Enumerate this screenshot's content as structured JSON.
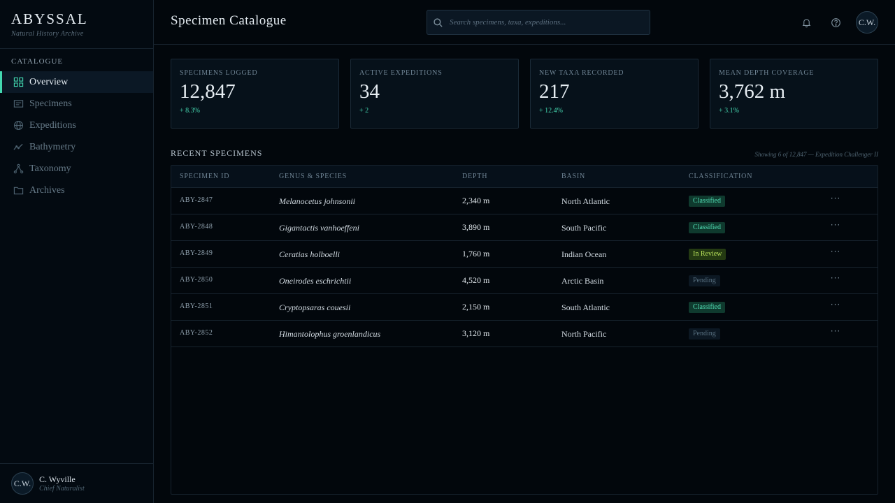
{
  "brand": {
    "title": "ABYSSAL",
    "subtitle": "Natural History Archive"
  },
  "sidebar": {
    "section": "CATALOGUE",
    "items": [
      {
        "label": "Overview",
        "icon": "grid-icon",
        "active": true
      },
      {
        "label": "Specimens",
        "icon": "card-icon"
      },
      {
        "label": "Expeditions",
        "icon": "globe-icon"
      },
      {
        "label": "Bathymetry",
        "icon": "line-chart-icon"
      },
      {
        "label": "Taxonomy",
        "icon": "tree-icon"
      },
      {
        "label": "Archives",
        "icon": "folder-icon"
      }
    ]
  },
  "user": {
    "initials": "C.W.",
    "name": "C. Wyville",
    "role": "Chief Naturalist"
  },
  "header": {
    "title": "Specimen Catalogue",
    "search_placeholder": "Search specimens, taxa, expeditions...",
    "avatar_initials": "C.W."
  },
  "stats": [
    {
      "label": "SPECIMENS LOGGED",
      "value": "12,847",
      "delta": "+ 8.3%"
    },
    {
      "label": "ACTIVE EXPEDITIONS",
      "value": "34",
      "delta": "+ 2"
    },
    {
      "label": "NEW TAXA RECORDED",
      "value": "217",
      "delta": "+ 12.4%"
    },
    {
      "label": "MEAN DEPTH COVERAGE",
      "value": "3,762 m",
      "delta": "+ 3.1%"
    }
  ],
  "recent": {
    "title": "RECENT SPECIMENS",
    "note": "Showing 6 of 12,847 — Expedition Challenger II",
    "columns": [
      "SPECIMEN ID",
      "GENUS & SPECIES",
      "DEPTH",
      "BASIN",
      "CLASSIFICATION"
    ],
    "rows": [
      {
        "id": "ABY-2847",
        "species": "Melanocetus johnsonii",
        "depth": "2,340 m",
        "basin": "North Atlantic",
        "status": "Classified",
        "status_type": "classified"
      },
      {
        "id": "ABY-2848",
        "species": "Gigantactis vanhoeffeni",
        "depth": "3,890 m",
        "basin": "South Pacific",
        "status": "Classified",
        "status_type": "classified"
      },
      {
        "id": "ABY-2849",
        "species": "Ceratias holboelli",
        "depth": "1,760 m",
        "basin": "Indian Ocean",
        "status": "In Review",
        "status_type": "review"
      },
      {
        "id": "ABY-2850",
        "species": "Oneirodes eschrichtii",
        "depth": "4,520 m",
        "basin": "Arctic Basin",
        "status": "Pending",
        "status_type": "pending"
      },
      {
        "id": "ABY-2851",
        "species": "Cryptopsaras couesii",
        "depth": "2,150 m",
        "basin": "South Atlantic",
        "status": "Classified",
        "status_type": "classified"
      },
      {
        "id": "ABY-2852",
        "species": "Himantolophus groenlandicus",
        "depth": "3,120 m",
        "basin": "North Pacific",
        "status": "Pending",
        "status_type": "pending"
      }
    ],
    "more_label": "···"
  },
  "colors": {
    "accent": "#43d8b0",
    "background": "#02070c",
    "panel": "#06111a"
  }
}
